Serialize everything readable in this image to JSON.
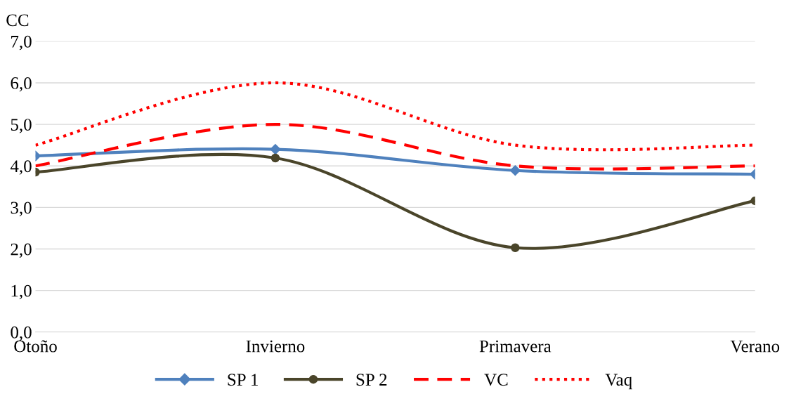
{
  "chart_data": {
    "type": "line",
    "ylabel": "CC",
    "categories": [
      "Otoño",
      "Invierno",
      "Primavera",
      "Verano"
    ],
    "series": [
      {
        "name": "SP 1",
        "color": "#4f81bd",
        "values": [
          4.24,
          4.4,
          3.89,
          3.8
        ],
        "marker": "diamond",
        "line_style": "solid"
      },
      {
        "name": "SP 2",
        "color": "#4a452a",
        "values": [
          3.85,
          4.19,
          2.03,
          3.16
        ],
        "marker": "circle",
        "line_style": "solid"
      },
      {
        "name": "VC",
        "color": "#ff0000",
        "values": [
          4.0,
          5.0,
          4.0,
          4.0
        ],
        "marker": "none",
        "line_style": "dashed"
      },
      {
        "name": "Vaq",
        "color": "#ff0000",
        "values": [
          4.5,
          6.0,
          4.5,
          4.5
        ],
        "marker": "none",
        "line_style": "dotted"
      }
    ],
    "ylim": [
      0,
      7
    ],
    "yticks": [
      {
        "value": 0,
        "label": "0,0"
      },
      {
        "value": 1,
        "label": "1,0"
      },
      {
        "value": 2,
        "label": "2,0"
      },
      {
        "value": 3,
        "label": "3,0"
      },
      {
        "value": 4,
        "label": "4,0"
      },
      {
        "value": 5,
        "label": "5,0"
      },
      {
        "value": 6,
        "label": "6,0"
      },
      {
        "value": 7,
        "label": "7,0"
      }
    ],
    "grid": "y",
    "legend": "bottom"
  }
}
